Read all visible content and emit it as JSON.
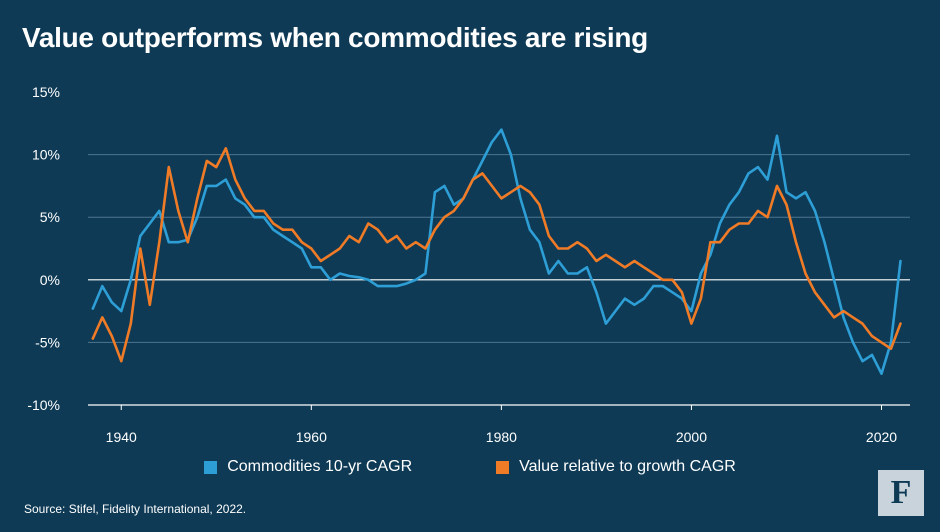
{
  "title": "Value outperforms when commodities are rising",
  "source": "Source: Stifel, Fidelity International, 2022.",
  "logo_glyph": "F",
  "colors": {
    "background": "#0e3a55",
    "commodities": "#2e9fd6",
    "value": "#f07b27",
    "gridline": "#4d7590",
    "text": "#ffffff"
  },
  "chart_data": {
    "type": "line",
    "title": "Value outperforms when commodities are rising",
    "xlabel": "",
    "ylabel": "",
    "xlim": [
      1936.5,
      2023
    ],
    "ylim": [
      -10,
      15
    ],
    "x_ticks": [
      1940,
      1960,
      1980,
      2000,
      2020
    ],
    "x_tick_labels": [
      "1940",
      "1960",
      "1980",
      "2000",
      "2020"
    ],
    "y_ticks": [
      15,
      10,
      5,
      0,
      -5,
      -10
    ],
    "y_tick_labels": [
      "15%",
      "10%",
      "5%",
      "0%",
      "-5%",
      "-10%"
    ],
    "grid": "horizontal",
    "legend_position": "bottom",
    "series": [
      {
        "name": "Commodities 10-yr CAGR",
        "color": "#2e9fd6",
        "x": [
          1937,
          1938,
          1939,
          1940,
          1941,
          1942,
          1943,
          1944,
          1945,
          1946,
          1947,
          1948,
          1949,
          1950,
          1951,
          1952,
          1953,
          1954,
          1955,
          1956,
          1957,
          1958,
          1959,
          1960,
          1961,
          1962,
          1963,
          1964,
          1965,
          1966,
          1967,
          1968,
          1969,
          1970,
          1971,
          1972,
          1973,
          1974,
          1975,
          1976,
          1977,
          1978,
          1979,
          1980,
          1981,
          1982,
          1983,
          1984,
          1985,
          1986,
          1987,
          1988,
          1989,
          1990,
          1991,
          1992,
          1993,
          1994,
          1995,
          1996,
          1997,
          1998,
          1999,
          2000,
          2001,
          2002,
          2003,
          2004,
          2005,
          2006,
          2007,
          2008,
          2009,
          2010,
          2011,
          2012,
          2013,
          2014,
          2015,
          2016,
          2017,
          2018,
          2019,
          2020,
          2021,
          2022
        ],
        "y": [
          -2.3,
          -0.5,
          -1.8,
          -2.5,
          0,
          3.5,
          4.5,
          5.5,
          3.0,
          3.0,
          3.2,
          5.0,
          7.5,
          7.5,
          8.0,
          6.5,
          6.0,
          5.0,
          5.0,
          4.0,
          3.5,
          3.0,
          2.5,
          1.0,
          1.0,
          0,
          0.5,
          0.3,
          0.2,
          0,
          -0.5,
          -0.5,
          -0.5,
          -0.3,
          0,
          0.5,
          7.0,
          7.5,
          6.0,
          6.5,
          8.0,
          9.5,
          11.0,
          12.0,
          10.0,
          6.5,
          4.0,
          3.0,
          0.5,
          1.5,
          0.5,
          0.5,
          1.0,
          -1.0,
          -3.5,
          -2.5,
          -1.5,
          -2.0,
          -1.5,
          -0.5,
          -0.5,
          -1.0,
          -1.5,
          -2.5,
          0.5,
          2.0,
          4.5,
          6.0,
          7.0,
          8.5,
          9.0,
          8.0,
          11.5,
          7.0,
          6.5,
          7.0,
          5.5,
          3.0,
          0,
          -3.0,
          -5.0,
          -6.5,
          -6.0,
          -7.5,
          -5.0,
          1.5
        ]
      },
      {
        "name": "Value relative to growth CAGR",
        "color": "#f07b27",
        "x": [
          1937,
          1938,
          1939,
          1940,
          1941,
          1942,
          1943,
          1944,
          1945,
          1946,
          1947,
          1948,
          1949,
          1950,
          1951,
          1952,
          1953,
          1954,
          1955,
          1956,
          1957,
          1958,
          1959,
          1960,
          1961,
          1962,
          1963,
          1964,
          1965,
          1966,
          1967,
          1968,
          1969,
          1970,
          1971,
          1972,
          1973,
          1974,
          1975,
          1976,
          1977,
          1978,
          1979,
          1980,
          1981,
          1982,
          1983,
          1984,
          1985,
          1986,
          1987,
          1988,
          1989,
          1990,
          1991,
          1992,
          1993,
          1994,
          1995,
          1996,
          1997,
          1998,
          1999,
          2000,
          2001,
          2002,
          2003,
          2004,
          2005,
          2006,
          2007,
          2008,
          2009,
          2010,
          2011,
          2012,
          2013,
          2014,
          2015,
          2016,
          2017,
          2018,
          2019,
          2020,
          2021,
          2022
        ],
        "y": [
          -4.7,
          -3.0,
          -4.5,
          -6.5,
          -3.5,
          2.5,
          -2.0,
          3.0,
          9.0,
          5.5,
          3.0,
          6.5,
          9.5,
          9.0,
          10.5,
          8.0,
          6.5,
          5.5,
          5.5,
          4.5,
          4.0,
          4.0,
          3.0,
          2.5,
          1.5,
          2.0,
          2.5,
          3.5,
          3.0,
          4.5,
          4.0,
          3.0,
          3.5,
          2.5,
          3.0,
          2.5,
          4.0,
          5.0,
          5.5,
          6.5,
          8.0,
          8.5,
          7.5,
          6.5,
          7.0,
          7.5,
          7.0,
          6.0,
          3.5,
          2.5,
          2.5,
          3.0,
          2.5,
          1.5,
          2.0,
          1.5,
          1.0,
          1.5,
          1.0,
          0.5,
          0,
          0,
          -1.0,
          -3.5,
          -1.5,
          3.0,
          3.0,
          4.0,
          4.5,
          4.5,
          5.5,
          5.0,
          7.5,
          6.0,
          3.0,
          0.5,
          -1.0,
          -2.0,
          -3.0,
          -2.5,
          -3.0,
          -3.5,
          -4.5,
          -5.0,
          -5.5,
          -3.5
        ]
      }
    ]
  }
}
